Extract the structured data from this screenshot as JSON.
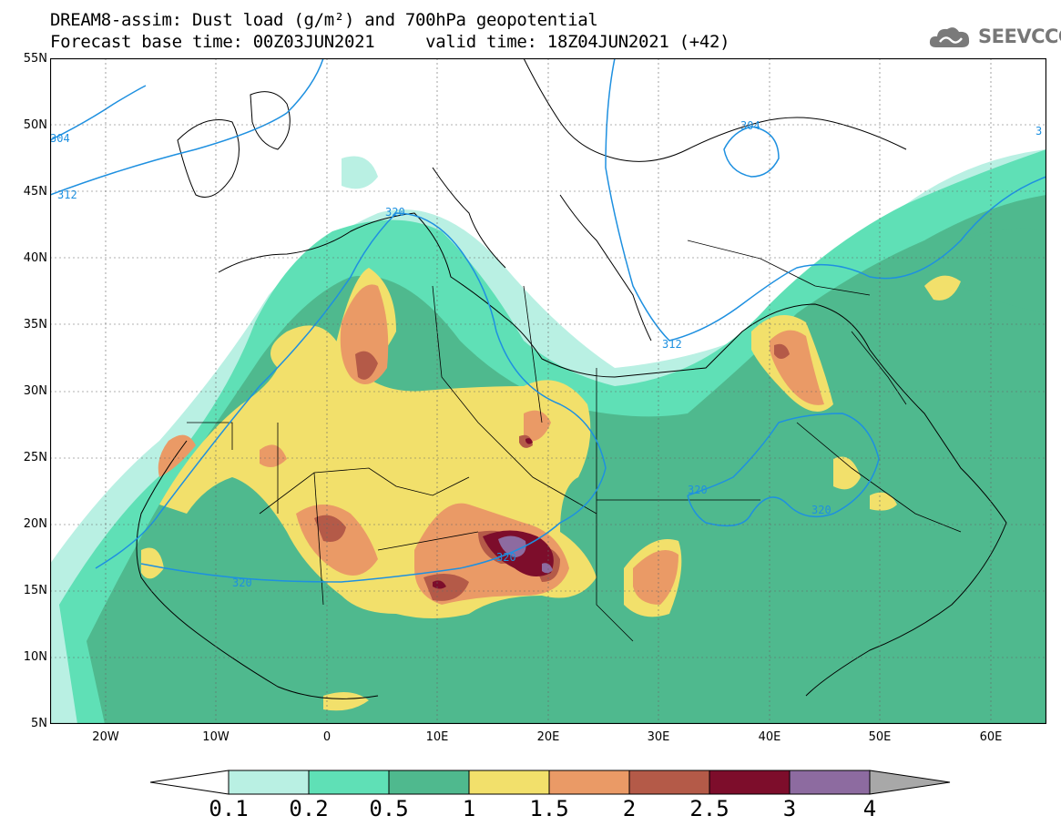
{
  "title": {
    "line1": "DREAM8-assim: Dust load (g/m²) and 700hPa geopotential",
    "line2": "Forecast base time: 00Z03JUN2021     valid time: 18Z04JUN2021 (+42)"
  },
  "logo": {
    "icon": "cloud-icon",
    "text": "SEEVCCC"
  },
  "axes": {
    "lat_labels": [
      "55N",
      "50N",
      "45N",
      "40N",
      "35N",
      "30N",
      "25N",
      "20N",
      "15N",
      "10N",
      "5N"
    ],
    "lon_labels": [
      "20W",
      "10W",
      "0",
      "10E",
      "20E",
      "30E",
      "40E",
      "50E",
      "60E"
    ],
    "lat_range": [
      5,
      55
    ],
    "lon_range": [
      -25,
      65
    ]
  },
  "contours": {
    "color": "#1e90e0",
    "labels": [
      "304",
      "312",
      "320",
      "304",
      "312",
      "320",
      "320",
      "320",
      "320",
      "3"
    ]
  },
  "colorbar": {
    "levels": [
      "0.1",
      "0.2",
      "0.5",
      "1",
      "1.5",
      "2",
      "2.5",
      "3",
      "4"
    ],
    "colors": [
      "#b9f0e3",
      "#5fe0b6",
      "#4fb98e",
      "#f2e06b",
      "#ea9a66",
      "#b45a48",
      "#7d0d2b",
      "#8d6ba0",
      "#a8a8a8"
    ],
    "below_color": "#ffffff"
  }
}
